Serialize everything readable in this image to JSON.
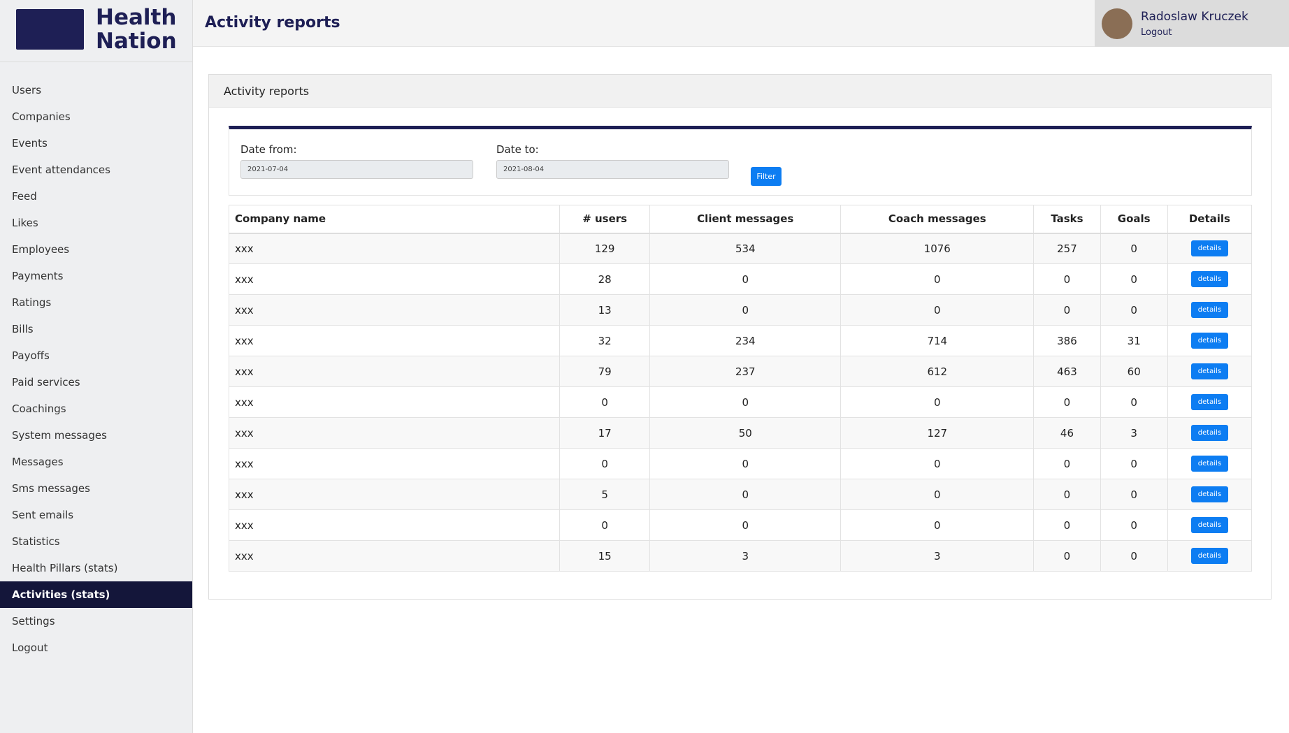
{
  "brand": {
    "line1": "Health",
    "line2": "Nation"
  },
  "user": {
    "name": "Radoslaw Kruczek",
    "logout": "Logout"
  },
  "page_title": "Activity reports",
  "menu": {
    "items": [
      "Users",
      "Companies",
      "Events",
      "Event attendances",
      "Feed",
      "Likes",
      "Employees",
      "Payments",
      "Ratings",
      "Bills",
      "Payoffs",
      "Paid services",
      "Coachings",
      "System messages",
      "Messages",
      "Sms messages",
      "Sent emails",
      "Statistics",
      "Health Pillars (stats)",
      "Activities (stats)",
      "Settings",
      "Logout"
    ],
    "active": 19
  },
  "panel": {
    "title": "Activity reports",
    "filter": {
      "from_label": "Date from:",
      "from_value": "2021-07-04",
      "to_label": "Date to:",
      "to_value": "2021-08-04",
      "button": "Filter"
    },
    "table": {
      "headers": [
        "Company name",
        "# users",
        "Client messages",
        "Coach messages",
        "Tasks",
        "Goals",
        "Details"
      ],
      "rows": [
        [
          "xxx",
          129,
          534,
          1076,
          257,
          0,
          "details"
        ],
        [
          "xxx",
          28,
          0,
          0,
          0,
          0,
          "details"
        ],
        [
          "xxx",
          13,
          0,
          0,
          0,
          0,
          "details"
        ],
        [
          "xxx",
          32,
          234,
          714,
          386,
          31,
          "details"
        ],
        [
          "xxx",
          79,
          237,
          612,
          463,
          60,
          "details"
        ],
        [
          "xxx",
          0,
          0,
          0,
          0,
          0,
          "details"
        ],
        [
          "xxx",
          17,
          50,
          127,
          46,
          3,
          "details"
        ],
        [
          "xxx",
          0,
          0,
          0,
          0,
          0,
          "details"
        ],
        [
          "xxx",
          5,
          0,
          0,
          0,
          0,
          "details"
        ],
        [
          "xxx",
          0,
          0,
          0,
          0,
          0,
          "details"
        ],
        [
          "xxx",
          15,
          3,
          3,
          0,
          0,
          "details"
        ]
      ]
    }
  }
}
